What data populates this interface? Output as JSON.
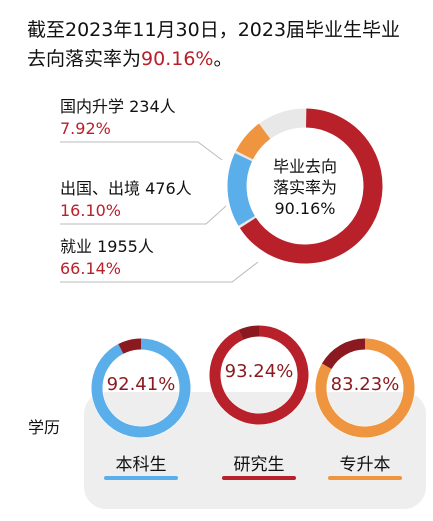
{
  "headline": {
    "line1": "截至2023年11月30日，2023届毕业生毕业",
    "line2_prefix": "去向落实率为",
    "line2_pct": "90.16%",
    "line2_suffix": "。"
  },
  "chart_data": [
    {
      "type": "pie",
      "center_label_line1": "毕业去向",
      "center_label_line2": "落实率为",
      "center_value": "90.16%",
      "slices": [
        {
          "label": "国内升学",
          "count_text": "234人",
          "pct_text": "7.92%",
          "value": 7.92,
          "color": "#f0953f"
        },
        {
          "label": "出国、出境",
          "count_text": "476人",
          "pct_text": "16.10%",
          "value": 16.1,
          "color": "#5aaeea"
        },
        {
          "label": "就业",
          "count_text": "1955人",
          "pct_text": "66.14%",
          "value": 66.14,
          "color": "#b8202a"
        }
      ],
      "remainder_color": "#e8e8e8"
    },
    {
      "type": "bar",
      "category_axis_label": "学历",
      "categories": [
        "本科生",
        "研究生",
        "专升本"
      ],
      "values": [
        92.41,
        93.24,
        83.23
      ],
      "value_texts": [
        "92.41%",
        "93.24%",
        "83.23%"
      ],
      "colors": [
        "#5aaeea",
        "#b8202a",
        "#f0953f"
      ],
      "ylim": [
        0,
        100
      ]
    }
  ],
  "colors": {
    "accent_red": "#b8202a",
    "dark_red": "#8a1a1f",
    "panel_gray": "#eeeeee",
    "track_gray": "#e8e8e8"
  }
}
